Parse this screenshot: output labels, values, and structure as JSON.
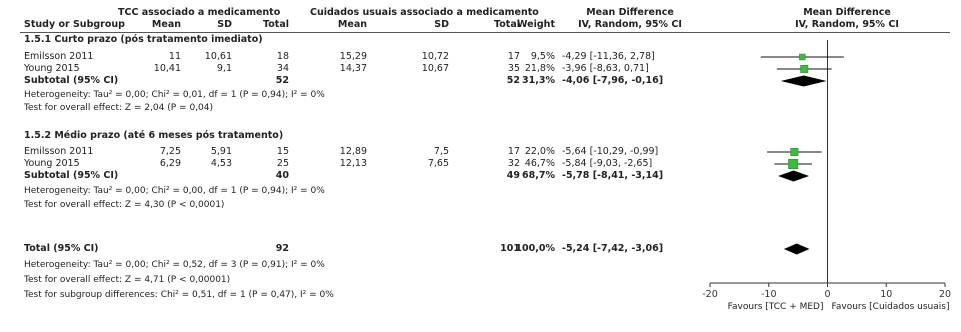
{
  "header": {
    "group1": "TCC associado a medicamento",
    "group2": "Cuidados usuais associado a medicamento",
    "mean_diff": "Mean Difference",
    "mean_diff_plot": "Mean Difference",
    "col_study": "Study or Subgroup",
    "col_mean1": "Mean",
    "col_sd1": "SD",
    "col_total1": "Total",
    "col_mean2": "Mean",
    "col_sd2": "SD",
    "col_total2": "Total",
    "col_weight": "Weight",
    "col_ci": "IV, Random, 95% CI",
    "col_ci_plot": "IV, Random, 95% CI"
  },
  "subgroups": [
    {
      "title": "1.5.1 Curto prazo (pós tratamento imediato)",
      "studies": [
        {
          "name": "Emilsson 2011",
          "mean1": "11",
          "sd1": "10,61",
          "total1": "18",
          "mean2": "15,29",
          "sd2": "10,72",
          "total2": "17",
          "weight": "9,5%",
          "ci": "-4,29 [-11,36, 2,78]"
        },
        {
          "name": "Young 2015",
          "mean1": "10,41",
          "sd1": "9,1",
          "total1": "34",
          "mean2": "14,37",
          "sd2": "10,67",
          "total2": "35",
          "weight": "21,8%",
          "ci": "-3,96 [-8,63, 0,71]"
        }
      ],
      "subtotal": {
        "label": "Subtotal (95% CI)",
        "total1": "52",
        "total2": "52",
        "weight": "31,3%",
        "ci": "-4,06 [-7,96, -0,16]"
      },
      "heterogeneity": "Heterogeneity: Tau² = 0,00; Chi² = 0,01, df = 1 (P = 0,94); I² = 0%",
      "overall": "Test for overall effect: Z = 2,04 (P = 0,04)"
    },
    {
      "title": "1.5.2 Médio prazo (até 6 meses pós tratamento)",
      "studies": [
        {
          "name": "Emilsson 2011",
          "mean1": "7,25",
          "sd1": "5,91",
          "total1": "15",
          "mean2": "12,89",
          "sd2": "7,5",
          "total2": "17",
          "weight": "22,0%",
          "ci": "-5,64 [-10,29, -0,99]"
        },
        {
          "name": "Young 2015",
          "mean1": "6,29",
          "sd1": "4,53",
          "total1": "25",
          "mean2": "12,13",
          "sd2": "7,65",
          "total2": "32",
          "weight": "46,7%",
          "ci": "-5,84 [-9,03, -2,65]"
        }
      ],
      "subtotal": {
        "label": "Subtotal (95% CI)",
        "total1": "40",
        "total2": "49",
        "weight": "68,7%",
        "ci": "-5,78 [-8,41, -3,14]"
      },
      "heterogeneity": "Heterogeneity: Tau² = 0,00; Chi² = 0,00, df = 1 (P = 0,94); I² = 0%",
      "overall": "Test for overall effect: Z = 4,30 (P < 0,0001)"
    }
  ],
  "total": {
    "label": "Total (95% CI)",
    "total1": "92",
    "total2": "101",
    "weight": "100,0%",
    "ci": "-5,24 [-7,42, -3,06]",
    "heterogeneity": "Heterogeneity: Tau² = 0,00; Chi² = 0,52, df = 3 (P = 0,91); I² = 0%",
    "overall": "Test for overall effect: Z = 4,71 (P < 0,00001)",
    "subgroup_diff": "Test for subgroup differences: Chi² = 0,51, df = 1 (P = 0,47), I² = 0%"
  },
  "chart_data": {
    "type": "scatter",
    "subtype": "forest-plot",
    "title": "Mean Difference",
    "subtitle": "IV, Random, 95% CI",
    "xlim": [
      -20,
      20
    ],
    "ticks": [
      -20,
      -10,
      0,
      10,
      20
    ],
    "tick_labels": [
      "-20",
      "-10",
      "0",
      "10",
      "20"
    ],
    "favours_left": "Favours [TCC + MED]",
    "favours_right": "Favours [Cuidados usuais]",
    "studies": [
      {
        "label": "Emilsson 2011",
        "md": -4.29,
        "lo": -11.36,
        "hi": 2.78,
        "weight": 9.5
      },
      {
        "label": "Young 2015",
        "md": -3.96,
        "lo": -8.63,
        "hi": 0.71,
        "weight": 21.8
      },
      {
        "label": "Emilsson 2011",
        "md": -5.64,
        "lo": -10.29,
        "hi": -0.99,
        "weight": 22.0
      },
      {
        "label": "Young 2015",
        "md": -5.84,
        "lo": -9.03,
        "hi": -2.65,
        "weight": 46.7
      }
    ],
    "diamonds": [
      {
        "label": "Subtotal (95% CI)",
        "md": -4.06,
        "lo": -7.96,
        "hi": -0.16
      },
      {
        "label": "Subtotal (95% CI)",
        "md": -5.78,
        "lo": -8.41,
        "hi": -3.14
      },
      {
        "label": "Total (95% CI)",
        "md": -5.24,
        "lo": -7.42,
        "hi": -3.06
      }
    ]
  }
}
